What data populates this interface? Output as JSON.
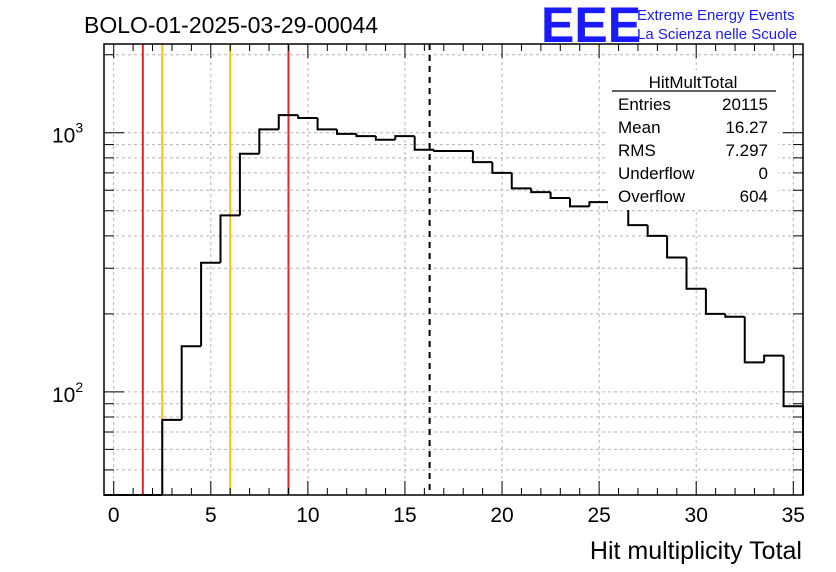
{
  "chart_data": {
    "type": "histogram",
    "title": "BOLO-01-2025-03-29-00044",
    "xlabel": "Hit multiplicity Total",
    "ylabel": "",
    "xlim": [
      -0.5,
      35.5
    ],
    "ylim": [
      40,
      2200
    ],
    "yscale": "log",
    "grid": true,
    "x_ticks": [
      0,
      5,
      10,
      15,
      20,
      25,
      30,
      35
    ],
    "x_tick_labels": [
      "0",
      "5",
      "10",
      "15",
      "20",
      "25",
      "30",
      "35"
    ],
    "y_ticks": [
      100,
      1000
    ],
    "y_tick_labels": [
      {
        "base": "10",
        "exp": "2"
      },
      {
        "base": "10",
        "exp": "3"
      }
    ],
    "bin_low_edges": [
      -0.5,
      0.5,
      1.5,
      2.5,
      3.5,
      4.5,
      5.5,
      6.5,
      7.5,
      8.5,
      9.5,
      10.5,
      11.5,
      12.5,
      13.5,
      14.5,
      15.5,
      16.5,
      17.5,
      18.5,
      19.5,
      20.5,
      21.5,
      22.5,
      23.5,
      24.5,
      25.5,
      26.5,
      27.5,
      28.5,
      29.5,
      30.5,
      31.5,
      32.5,
      33.5,
      34.5
    ],
    "bin_width": 1,
    "values": [
      0,
      0,
      0,
      78,
      150,
      315,
      480,
      830,
      1030,
      1170,
      1140,
      1030,
      990,
      970,
      940,
      970,
      860,
      850,
      850,
      770,
      700,
      610,
      590,
      560,
      520,
      540,
      510,
      440,
      400,
      330,
      250,
      200,
      195,
      130,
      138,
      88
    ],
    "vertical_lines": [
      {
        "x": 1.5,
        "color": "#e8232b",
        "style": "solid"
      },
      {
        "x": 2.5,
        "color": "#f7c20f",
        "style": "solid"
      },
      {
        "x": 6.0,
        "color": "#f7c20f",
        "style": "solid"
      },
      {
        "x": 9.0,
        "color": "#e8232b",
        "style": "solid"
      },
      {
        "x": 16.27,
        "color": "#000000",
        "style": "dashed"
      }
    ],
    "stats_box": {
      "title": "HitMultTotal",
      "rows": [
        {
          "label": "Entries",
          "value": "20115"
        },
        {
          "label": "Mean",
          "value": "16.27"
        },
        {
          "label": "RMS",
          "value": "7.297"
        },
        {
          "label": "Underflow",
          "value": "0"
        },
        {
          "label": "Overflow",
          "value": "604"
        }
      ]
    }
  },
  "logo": {
    "text": "EEE",
    "line1": "Extreme Energy Events",
    "line2": "La Scienza nelle Scuole",
    "color": "#1a1aff"
  }
}
